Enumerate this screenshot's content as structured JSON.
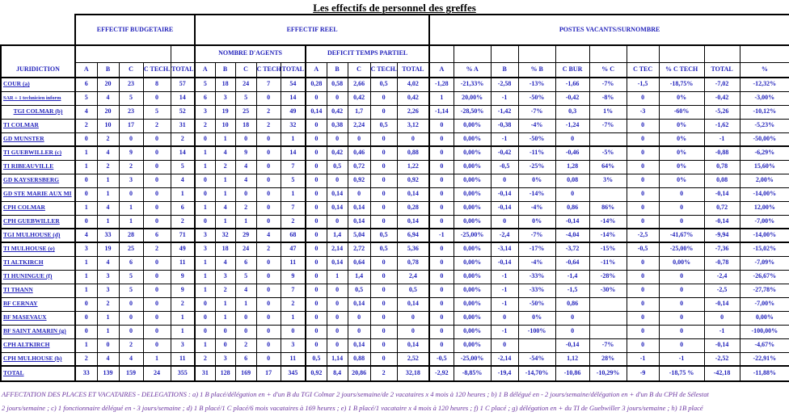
{
  "title": "Les effectifs de personnel des greffes",
  "colors": {
    "ink": "#2222bb",
    "border": "#000000",
    "footnote": "#6b35a0"
  },
  "header": {
    "juridiction": "JURIDICTION",
    "groups": {
      "budgetaire": "EFFECTIF BUDGETAIRE",
      "reel": "EFFECTIF REEL",
      "vacants": "POSTES VACANTS/SURNOMBRE",
      "agents": "NOMBRE D'AGENTS",
      "deficit": "DEFICIT TEMPS PARTIEL"
    },
    "sub_cols": [
      "A",
      "B",
      "C",
      "C TECH.",
      "TOTAL"
    ],
    "vacants_cols": [
      "A",
      "% A",
      "B",
      "% B",
      "C BUR",
      "% C",
      "C TEC",
      "% C TECH",
      "TOTAL",
      "%"
    ]
  },
  "rows": [
    {
      "label": "COUR (a)",
      "budget": [
        "6",
        "20",
        "23",
        "8",
        "57"
      ],
      "agents": [
        "5",
        "18",
        "24",
        "7",
        "54"
      ],
      "deficit": [
        "0,28",
        "0,58",
        "2,66",
        "0,5",
        "4,02"
      ],
      "vacants": [
        "-1,28",
        "-21,33%",
        "-2,58",
        "-13%",
        "-1,66",
        "-7%",
        "-1,5",
        "-18,75%",
        "-7,02",
        "-12,32%"
      ]
    },
    {
      "label": "SAR + 1 technicien inform",
      "small": true,
      "budget": [
        "5",
        "4",
        "5",
        "0",
        "14"
      ],
      "agents": [
        "6",
        "3",
        "5",
        "0",
        "14"
      ],
      "deficit": [
        "0",
        "0",
        "0,42",
        "0",
        "0,42"
      ],
      "vacants": [
        "1",
        "20,00%",
        "-1",
        "-50%",
        "-0,42",
        "-8%",
        "0",
        "0%",
        "-0,42",
        "-3,00%"
      ]
    },
    {
      "label": "TGI COLMAR (b)",
      "center": true,
      "budget": [
        "4",
        "20",
        "23",
        "5",
        "52"
      ],
      "agents": [
        "3",
        "19",
        "25",
        "2",
        "49"
      ],
      "deficit": [
        "0,14",
        "0,42",
        "1,7",
        "0",
        "2,26"
      ],
      "vacants": [
        "-1,14",
        "-28,50%",
        "-1,42",
        "-7%",
        "0,3",
        "1%",
        "-3",
        "-60%",
        "-5,26",
        "-10,12%"
      ]
    },
    {
      "label": "TI COLMAR",
      "budget": [
        "2",
        "10",
        "17",
        "2",
        "31"
      ],
      "agents": [
        "2",
        "10",
        "18",
        "2",
        "32"
      ],
      "deficit": [
        "0",
        "0,38",
        "2,24",
        "0,5",
        "3,12"
      ],
      "vacants": [
        "0",
        "0,00%",
        "-0,38",
        "-4%",
        "-1,24",
        "-7%",
        "0",
        "0%",
        "-1,62",
        "-5,23%"
      ]
    },
    {
      "label": "GD MUNSTER",
      "thick": true,
      "budget": [
        "0",
        "2",
        "0",
        "0",
        "2"
      ],
      "agents": [
        "0",
        "1",
        "0",
        "0",
        "1"
      ],
      "deficit": [
        "0",
        "0",
        "0",
        "0",
        "0"
      ],
      "vacants": [
        "0",
        "0,00%",
        "-1",
        "-50%",
        "0",
        "",
        "0",
        "0%",
        "-1",
        "-50,00%"
      ]
    },
    {
      "label": "TI GUEBWILLER (c)",
      "budget": [
        "1",
        "4",
        "9",
        "0",
        "14"
      ],
      "agents": [
        "1",
        "4",
        "9",
        "0",
        "14"
      ],
      "deficit": [
        "0",
        "0,42",
        "0,46",
        "0",
        "0,88"
      ],
      "vacants": [
        "0",
        "0,00%",
        "-0,42",
        "-11%",
        "-0,46",
        "-5%",
        "0",
        "0%",
        "-0,88",
        "-6,29%"
      ]
    },
    {
      "label": "TI RIBEAUVILLE",
      "budget": [
        "1",
        "2",
        "2",
        "0",
        "5"
      ],
      "agents": [
        "1",
        "2",
        "4",
        "0",
        "7"
      ],
      "deficit": [
        "0",
        "0,5",
        "0,72",
        "0",
        "1,22"
      ],
      "vacants": [
        "0",
        "0,00%",
        "-0,5",
        "-25%",
        "1,28",
        "64%",
        "0",
        "0%",
        "0,78",
        "15,60%"
      ]
    },
    {
      "label": "GD KAYSERSBERG",
      "budget": [
        "0",
        "1",
        "3",
        "0",
        "4"
      ],
      "agents": [
        "0",
        "1",
        "4",
        "0",
        "5"
      ],
      "deficit": [
        "0",
        "0",
        "0,92",
        "0",
        "0,92"
      ],
      "vacants": [
        "0",
        "0,00%",
        "0",
        "0%",
        "0,08",
        "3%",
        "0",
        "0%",
        "0,08",
        "2,00%"
      ]
    },
    {
      "label": "GD STE MARIE AUX MI",
      "budget": [
        "0",
        "1",
        "0",
        "0",
        "1"
      ],
      "agents": [
        "0",
        "1",
        "0",
        "0",
        "1"
      ],
      "deficit": [
        "0",
        "0,14",
        "0",
        "0",
        "0,14"
      ],
      "vacants": [
        "0",
        "0,00%",
        "-0,14",
        "-14%",
        "0",
        "",
        "0",
        "0",
        "-0,14",
        "-14,00%"
      ]
    },
    {
      "label": "CPH COLMAR",
      "budget": [
        "1",
        "4",
        "1",
        "0",
        "6"
      ],
      "agents": [
        "1",
        "4",
        "2",
        "0",
        "7"
      ],
      "deficit": [
        "0",
        "0,14",
        "0,14",
        "0",
        "0,28"
      ],
      "vacants": [
        "0",
        "0,00%",
        "-0,14",
        "-4%",
        "0,86",
        "86%",
        "0",
        "0",
        "0,72",
        "12,00%"
      ]
    },
    {
      "label": "CPH GUEBWILLER",
      "thick": true,
      "budget": [
        "0",
        "1",
        "1",
        "0",
        "2"
      ],
      "agents": [
        "0",
        "1",
        "1",
        "0",
        "2"
      ],
      "deficit": [
        "0",
        "0",
        "0,14",
        "0",
        "0,14"
      ],
      "vacants": [
        "0",
        "0,00%",
        "0",
        "0%",
        "-0,14",
        "-14%",
        "0",
        "0",
        "-0,14",
        "-7,00%"
      ]
    },
    {
      "label": "TGI MULHOUSE (d)",
      "thick": true,
      "budget": [
        "4",
        "33",
        "28",
        "6",
        "71"
      ],
      "agents": [
        "3",
        "32",
        "29",
        "4",
        "68"
      ],
      "deficit": [
        "0",
        "1,4",
        "5,04",
        "0,5",
        "6,94"
      ],
      "vacants": [
        "-1",
        "-25,00%",
        "-2,4",
        "-7%",
        "-4,04",
        "-14%",
        "-2,5",
        "-41,67%",
        "-9,94",
        "-14,00%"
      ]
    },
    {
      "label": "TI MULHOUSE (e)",
      "budget": [
        "3",
        "19",
        "25",
        "2",
        "49"
      ],
      "agents": [
        "3",
        "18",
        "24",
        "2",
        "47"
      ],
      "deficit": [
        "0",
        "2,14",
        "2,72",
        "0,5",
        "5,36"
      ],
      "vacants": [
        "0",
        "0,00%",
        "-3,14",
        "-17%",
        "-3,72",
        "-15%",
        "-0,5",
        "-25,00%",
        "-7,36",
        "-15,02%"
      ]
    },
    {
      "label": "TI ALTKIRCH",
      "budget": [
        "1",
        "4",
        "6",
        "0",
        "11"
      ],
      "agents": [
        "1",
        "4",
        "6",
        "0",
        "11"
      ],
      "deficit": [
        "0",
        "0,14",
        "0,64",
        "0",
        "0,78"
      ],
      "vacants": [
        "0",
        "0,00%",
        "-0,14",
        "-4%",
        "-0,64",
        "-11%",
        "0",
        "0,00%",
        "-0,78",
        "-7,09%"
      ]
    },
    {
      "label": "TI HUNINGUE (f)",
      "budget": [
        "1",
        "3",
        "5",
        "0",
        "9"
      ],
      "agents": [
        "1",
        "3",
        "5",
        "0",
        "9"
      ],
      "deficit": [
        "0",
        "1",
        "1,4",
        "0",
        "2,4"
      ],
      "vacants": [
        "0",
        "0,00%",
        "-1",
        "-33%",
        "-1,4",
        "-28%",
        "0",
        "0",
        "-2,4",
        "-26,67%"
      ]
    },
    {
      "label": "TI THANN",
      "budget": [
        "1",
        "3",
        "5",
        "0",
        "9"
      ],
      "agents": [
        "1",
        "2",
        "4",
        "0",
        "7"
      ],
      "deficit": [
        "0",
        "0",
        "0,5",
        "0",
        "0,5"
      ],
      "vacants": [
        "0",
        "0,00%",
        "-1",
        "-33%",
        "-1,5",
        "-30%",
        "0",
        "0",
        "-2,5",
        "-27,78%"
      ]
    },
    {
      "label": "BF CERNAY",
      "budget": [
        "0",
        "2",
        "0",
        "0",
        "2"
      ],
      "agents": [
        "0",
        "1",
        "1",
        "0",
        "2"
      ],
      "deficit": [
        "0",
        "0",
        "0,14",
        "0",
        "0,14"
      ],
      "vacants": [
        "0",
        "0,00%",
        "-1",
        "-50%",
        "0,86",
        "",
        "0",
        "0",
        "-0,14",
        "-7,00%"
      ]
    },
    {
      "label": "BF MASEVAUX",
      "budget": [
        "0",
        "1",
        "0",
        "0",
        "1"
      ],
      "agents": [
        "0",
        "1",
        "0",
        "0",
        "1"
      ],
      "deficit": [
        "0",
        "0",
        "0",
        "0",
        "0"
      ],
      "vacants": [
        "0",
        "0,00%",
        "0",
        "0%",
        "0",
        "",
        "0",
        "0",
        "0",
        "0,00%"
      ]
    },
    {
      "label": "BF SAINT AMARIN (g)",
      "budget": [
        "0",
        "1",
        "0",
        "0",
        "1"
      ],
      "agents": [
        "0",
        "0",
        "0",
        "0",
        "0"
      ],
      "deficit": [
        "0",
        "0",
        "0",
        "0",
        "0"
      ],
      "vacants": [
        "0",
        "0,00%",
        "-1",
        "-100%",
        "0",
        "",
        "0",
        "0",
        "-1",
        "-100,00%"
      ]
    },
    {
      "label": "CPH ALTKIRCH",
      "budget": [
        "1",
        "0",
        "2",
        "0",
        "3"
      ],
      "agents": [
        "1",
        "0",
        "2",
        "0",
        "3"
      ],
      "deficit": [
        "0",
        "0",
        "0,14",
        "0",
        "0,14"
      ],
      "vacants": [
        "0",
        "0,00%",
        "0",
        "",
        "-0,14",
        "-7%",
        "0",
        "0",
        "-0,14",
        "-4,67%"
      ]
    },
    {
      "label": "CPH MULHOUSE (h)",
      "thick": true,
      "budget": [
        "2",
        "4",
        "4",
        "1",
        "11"
      ],
      "agents": [
        "2",
        "3",
        "6",
        "0",
        "11"
      ],
      "deficit": [
        "0,5",
        "1,14",
        "0,88",
        "0",
        "2,52"
      ],
      "vacants": [
        "-0,5",
        "-25,00%",
        "-2,14",
        "-54%",
        "1,12",
        "28%",
        "-1",
        "-1",
        "-2,52",
        "-22,91%"
      ]
    },
    {
      "label": "TOTAL",
      "budget": [
        "33",
        "139",
        "159",
        "24",
        "355"
      ],
      "agents": [
        "31",
        "128",
        "169",
        "17",
        "345"
      ],
      "deficit": [
        "0,92",
        "8,4",
        "20,86",
        "2",
        "32,18"
      ],
      "vacants": [
        "-2,92",
        "-8,85%",
        "-19,4",
        "-14,70%",
        "-10,86",
        "-10,29%",
        "-9",
        "-18,75 %",
        "-42,18",
        "-11,88%"
      ]
    }
  ],
  "footnotes": [
    "AFFECTATION DES PLACES ET VACATAIRES - DELEGATIONS : a) 1 B placé/délégation en + d'un B du TGI Colmar 2 jours/semaine/de 2 vacataires x 4 mois à 120 heures ; b) 1 B délégué en - 2 jours/semaine/délégation en + d'un B du CPH de Sélestat",
    "2 jours/semaine ; c) 1 fonctionnaire délégué en - 3 jours/semaine ; d) 1 B placé/1 C placé/6 mois vacataires à 169 heures ; e) 1 B placé/1 vacataire x 4 mois à 120 heures ; f) 1 C placé ; g) délégation en + du TI de Guebwiller 3 jours/semaine ; h) 1B placé"
  ]
}
